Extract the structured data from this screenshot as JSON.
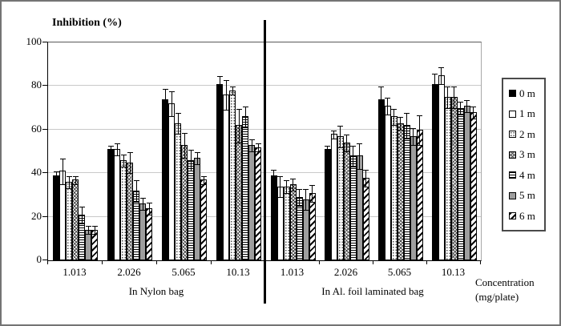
{
  "title": "Inhibition (%)",
  "axis": {
    "y_ticks": [
      0,
      20,
      40,
      60,
      80,
      100
    ],
    "y_max": 100,
    "x_label_line1": "Concentration",
    "x_label_line2": "(mg/plate)"
  },
  "colors": {
    "bar_black": "#000000",
    "bar_gray": "#9e9e9e",
    "gridline": "#c9c9c9",
    "divider": "#000000",
    "background": "#ffffff"
  },
  "chart_data": {
    "type": "bar",
    "title": "Inhibition (%)",
    "ylabel": "Inhibition (%)",
    "xlabel": "Concentration (mg/plate)",
    "ylim": [
      0,
      100
    ],
    "grid": true,
    "legend_position": "right",
    "error_bars": true,
    "categories": [
      "1.013",
      "2.026",
      "5.065",
      "10.13"
    ],
    "sections": [
      "In Nylon bag",
      "In Al. foil laminated bag"
    ],
    "series": [
      {
        "name": "0 m",
        "pattern": "solid-black",
        "values": [
          [
            39,
            51,
            74,
            81
          ],
          [
            39,
            51,
            74,
            81
          ]
        ],
        "errors": [
          [
            2,
            2,
            5,
            4
          ],
          [
            3,
            2,
            6,
            5
          ]
        ]
      },
      {
        "name": "1 m",
        "pattern": "solid-white",
        "values": [
          [
            41,
            51,
            72,
            76
          ],
          [
            34,
            58,
            71,
            85
          ]
        ],
        "errors": [
          [
            6,
            3,
            6,
            7
          ],
          [
            5,
            2,
            4,
            4
          ]
        ]
      },
      {
        "name": "2 m",
        "pattern": "dots-sparse",
        "values": [
          [
            36,
            46,
            63,
            78
          ],
          [
            34,
            57,
            66,
            75
          ]
        ],
        "errors": [
          [
            3,
            3,
            5,
            2
          ],
          [
            3,
            5,
            4,
            5
          ]
        ]
      },
      {
        "name": "3 m",
        "pattern": "crosshatch",
        "values": [
          [
            37,
            45,
            53,
            62
          ],
          [
            35,
            54,
            63,
            75
          ]
        ],
        "errors": [
          [
            2,
            5,
            6,
            8
          ],
          [
            3,
            4,
            3,
            5
          ]
        ]
      },
      {
        "name": "4 m",
        "pattern": "hlines",
        "values": [
          [
            21,
            32,
            46,
            66
          ],
          [
            29,
            48,
            62,
            70
          ]
        ],
        "errors": [
          [
            4,
            5,
            5,
            5
          ],
          [
            4,
            5,
            6,
            3
          ]
        ]
      },
      {
        "name": "5 m",
        "pattern": "solid-gray",
        "values": [
          [
            14,
            26,
            47,
            53
          ],
          [
            28,
            48,
            57,
            71
          ]
        ],
        "errors": [
          [
            2,
            3,
            3,
            3
          ],
          [
            5,
            6,
            4,
            3
          ]
        ]
      },
      {
        "name": "6 m",
        "pattern": "diagonal",
        "values": [
          [
            14,
            24,
            37,
            52
          ],
          [
            31,
            38,
            60,
            68
          ]
        ],
        "errors": [
          [
            2,
            3,
            2,
            2
          ],
          [
            4,
            4,
            7,
            3
          ]
        ]
      }
    ]
  }
}
